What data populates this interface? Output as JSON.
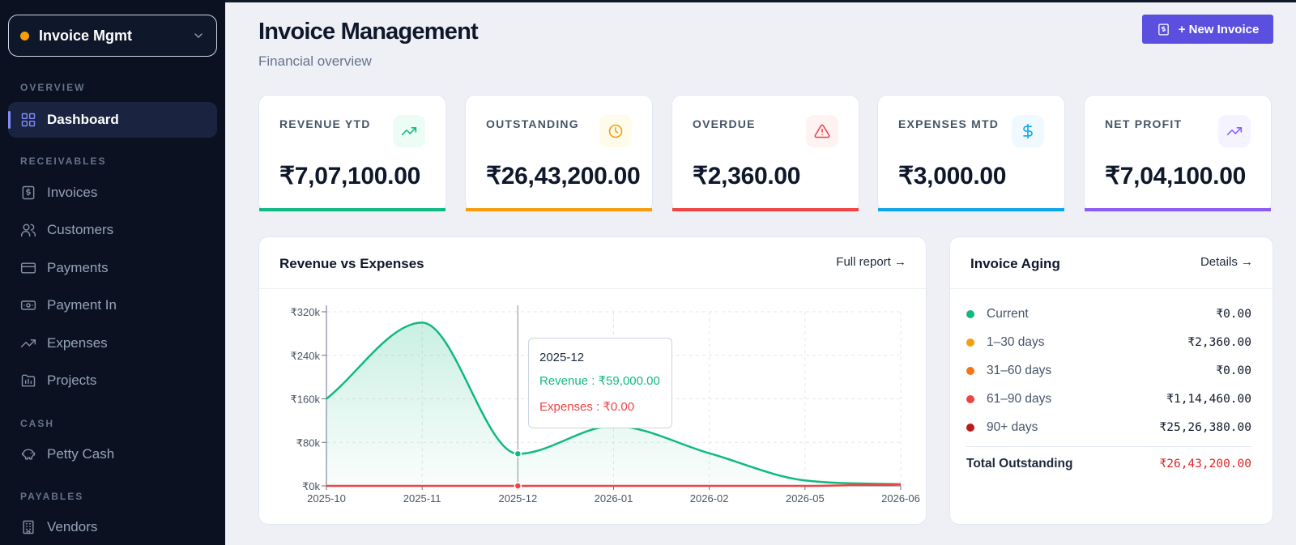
{
  "sidebar": {
    "app_name": "Invoice Mgmt",
    "sections": {
      "overview": "OVERVIEW",
      "receivables": "RECEIVABLES",
      "cash": "CASH",
      "payables": "PAYABLES"
    },
    "items": [
      {
        "label": "Dashboard",
        "icon": "dashboard-icon",
        "active": true
      },
      {
        "label": "Invoices",
        "icon": "invoice-icon"
      },
      {
        "label": "Customers",
        "icon": "users-icon"
      },
      {
        "label": "Payments",
        "icon": "credit-card-icon"
      },
      {
        "label": "Payment In",
        "icon": "banknote-icon"
      },
      {
        "label": "Expenses",
        "icon": "trending-icon"
      },
      {
        "label": "Projects",
        "icon": "projects-icon"
      },
      {
        "label": "Petty Cash",
        "icon": "piggy-bank-icon"
      },
      {
        "label": "Vendors",
        "icon": "building-icon"
      }
    ]
  },
  "header": {
    "title": "Invoice Management",
    "subtitle": "Financial overview",
    "new_button": "+ New Invoice"
  },
  "stats": [
    {
      "label": "REVENUE YTD",
      "value": "₹7,07,100.00",
      "color": "#10b981",
      "icon": "trending-up-icon"
    },
    {
      "label": "OUTSTANDING",
      "value": "₹26,43,200.00",
      "color": "#f59e0b",
      "icon": "clock-icon"
    },
    {
      "label": "OVERDUE",
      "value": "₹2,360.00",
      "color": "#ef4444",
      "icon": "alert-triangle-icon"
    },
    {
      "label": "EXPENSES MTD",
      "value": "₹3,000.00",
      "color": "#0ea5e9",
      "icon": "dollar-icon"
    },
    {
      "label": "NET PROFIT",
      "value": "₹7,04,100.00",
      "color": "#8b5cf6",
      "icon": "trending-up-icon"
    }
  ],
  "revenue_card": {
    "title": "Revenue vs Expenses",
    "link": "Full report →"
  },
  "tooltip": {
    "date": "2025-12",
    "revenue": "Revenue : ₹59,000.00",
    "expenses": "Expenses : ₹0.00"
  },
  "chart_data": {
    "type": "area",
    "categories": [
      "2025-10",
      "2025-11",
      "2025-12",
      "2026-01",
      "2026-02",
      "2026-05",
      "2026-06"
    ],
    "series": [
      {
        "name": "Revenue",
        "color": "#10b981",
        "values": [
          160000,
          300000,
          59000,
          110000,
          60000,
          10000,
          3000
        ]
      },
      {
        "name": "Expenses",
        "color": "#ef4444",
        "values": [
          0,
          0,
          0,
          0,
          0,
          0,
          3000
        ]
      }
    ],
    "y_ticks": [
      "₹0k",
      "₹80k",
      "₹160k",
      "₹240k",
      "₹320k"
    ],
    "ylim": [
      0,
      320000
    ],
    "grid": true,
    "highlight_category": "2025-12"
  },
  "aging": {
    "title": "Invoice Aging",
    "link": "Details →",
    "rows": [
      {
        "label": "Current",
        "value": "₹0.00",
        "color": "#10b981"
      },
      {
        "label": "1–30 days",
        "value": "₹2,360.00",
        "color": "#f59e0b"
      },
      {
        "label": "31–60 days",
        "value": "₹0.00",
        "color": "#f97316"
      },
      {
        "label": "61–90 days",
        "value": "₹1,14,460.00",
        "color": "#ef4444"
      },
      {
        "label": "90+ days",
        "value": "₹25,26,380.00",
        "color": "#b91c1c"
      }
    ],
    "total_label": "Total Outstanding",
    "total_value": "₹26,43,200.00",
    "total_color": "#dc2626"
  }
}
